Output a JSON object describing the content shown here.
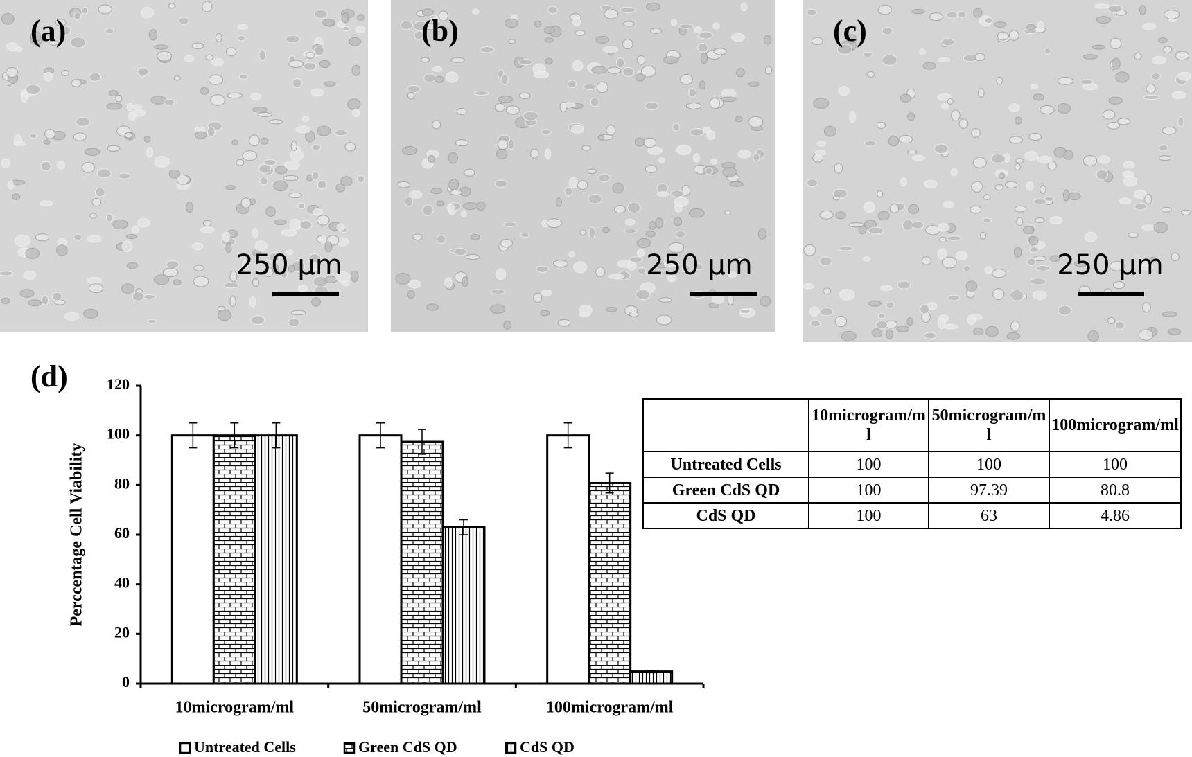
{
  "panels": [
    {
      "label": "(a)",
      "scale_bar": "250 µm"
    },
    {
      "label": "(b)",
      "scale_bar": "250 µm"
    },
    {
      "label": "(c)",
      "scale_bar": "250 µm"
    }
  ],
  "chart_panel_label": "(d)",
  "chart_data": {
    "type": "bar",
    "y_label": "Perccentage Cell Viability",
    "categories": [
      "10microgram/ml",
      "50microgram/ml",
      "100microgram/ml"
    ],
    "series": [
      {
        "name": "Untreated Cells",
        "color": "#000000",
        "fill": "white",
        "values": [
          100,
          100,
          100
        ],
        "errors": [
          5,
          5,
          5
        ]
      },
      {
        "name": "Green CdS QD",
        "color": "#000000",
        "fill": "brick",
        "values": [
          100,
          97.39,
          80.8
        ],
        "errors": [
          5,
          5,
          4
        ]
      },
      {
        "name": "CdS QD",
        "color": "#000000",
        "fill": "vertical-lines",
        "values": [
          100,
          63,
          4.86
        ],
        "errors": [
          5,
          3,
          0.5
        ]
      }
    ],
    "ylim": [
      0,
      120
    ],
    "yticks": [
      0,
      20,
      40,
      60,
      80,
      100,
      120
    ],
    "grid": false,
    "legend": "bottom"
  },
  "table": {
    "columns": [
      "10microgram/ml",
      "50microgram/ml",
      "100microgram/ml"
    ],
    "rows": [
      [
        "Untreated Cells",
        100,
        100,
        100
      ],
      [
        "Green CdS QD",
        100,
        97.39,
        80.8
      ],
      [
        "CdS QD",
        100,
        63,
        4.86
      ]
    ]
  }
}
